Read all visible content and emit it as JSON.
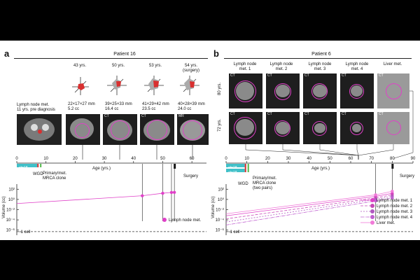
{
  "panel_a": {
    "label": "a",
    "patient": "Patient 16",
    "ages": [
      "43 yrs.",
      "50 yrs.",
      "53 yrs.",
      "54 yrs."
    ],
    "surgery_note": "(surgery)",
    "sizes": [
      "22×17×27 mm",
      "39×25×33 mm",
      "41×29×42 mm",
      "40×28×39 mm"
    ],
    "volumes": [
      "5.2 cc",
      "16.4 cc",
      "23.5 cc",
      "24.0 cc"
    ],
    "left_caption_1": "Lymph node met.",
    "left_caption_2": "11 yrs. pre diagnosis",
    "scan_tags": [
      "CT",
      "CT",
      "CT",
      "MR"
    ],
    "axis_label": "Age (yrs.)",
    "ticks": [
      "0",
      "10",
      "20",
      "30",
      "40",
      "50",
      "60"
    ],
    "chr_label": "chr18",
    "wgd": "WGD",
    "primary_label_1": "Primary/met.",
    "primary_label_2": "MRCA clone",
    "surgery": "Surgery",
    "y_axis": "Volume (cc)",
    "y_ticks": [
      "10²",
      "10⁰",
      "10⁻²",
      "10⁻⁴",
      "10⁻⁶"
    ],
    "cell_label": "~1 cell",
    "legend": "Lymph node met."
  },
  "panel_b": {
    "label": "b",
    "patient": "Patient 6",
    "columns": [
      "Lymph node met. 1",
      "Lymph node met. 2",
      "Lymph node met. 3",
      "Lymph node met. 4",
      "Liver met."
    ],
    "row_labels": [
      "80 yrs.",
      "72 yrs."
    ],
    "scan_tag": "CT",
    "axis_label": "Age (yrs.)",
    "ticks": [
      "0",
      "10",
      "20",
      "30",
      "40",
      "50",
      "60",
      "70",
      "80",
      "90"
    ],
    "chr_label": "chr18",
    "wgd": "WGD",
    "primary_label_1": "Primary/met.",
    "primary_label_2": "MRCA clone",
    "primary_label_3": "(two pairs)",
    "surgery": "Surgery",
    "y_axis": "Volume (cc)",
    "y_ticks": [
      "10²",
      "10⁰",
      "10⁻²",
      "10⁻⁴",
      "10⁻⁶"
    ],
    "cell_label": "~1 cell",
    "legend": [
      "Lymph node met. 1",
      "Lymph node met. 2",
      "Lymph node met. 3",
      "Lymph node met. 4",
      "Liver met."
    ]
  },
  "colors": {
    "magenta": "#e040c8",
    "pink": "#f07ad8",
    "cyan": "#40c0c8",
    "red": "#d83030",
    "green": "#50b848"
  },
  "chart_data": [
    {
      "type": "line",
      "title": "Patient 16",
      "xlabel": "Age (yrs.)",
      "ylabel": "Volume (cc)",
      "xlim": [
        0,
        65
      ],
      "ylim_log10": [
        -7,
        3
      ],
      "series": [
        {
          "name": "Lymph node met.",
          "x": [
            0,
            43,
            50,
            53,
            54
          ],
          "log10_volume": [
            -0.8,
            0.72,
            1.21,
            1.37,
            1.38
          ]
        }
      ]
    },
    {
      "type": "line",
      "title": "Patient 6",
      "xlabel": "Age (yrs.)",
      "ylabel": "Volume (cc)",
      "xlim": [
        0,
        90
      ],
      "ylim_log10": [
        -7,
        3
      ],
      "series": [
        {
          "name": "Lymph node met. 1",
          "x": [
            0,
            72,
            80
          ],
          "log10_volume": [
            -3.2,
            0.6,
            1.2
          ]
        },
        {
          "name": "Lymph node met. 2",
          "x": [
            0,
            72,
            80
          ],
          "log10_volume": [
            -3.8,
            0.3,
            0.9
          ]
        },
        {
          "name": "Lymph node met. 3",
          "x": [
            0,
            72,
            80
          ],
          "log10_volume": [
            -4.4,
            0.0,
            0.6
          ]
        },
        {
          "name": "Lymph node met. 4",
          "x": [
            0,
            72,
            80
          ],
          "log10_volume": [
            -5.0,
            -0.3,
            0.3
          ]
        },
        {
          "name": "Liver met.",
          "x": [
            0,
            72,
            80
          ],
          "log10_volume": [
            -2.8,
            0.9,
            1.6
          ]
        }
      ]
    }
  ]
}
